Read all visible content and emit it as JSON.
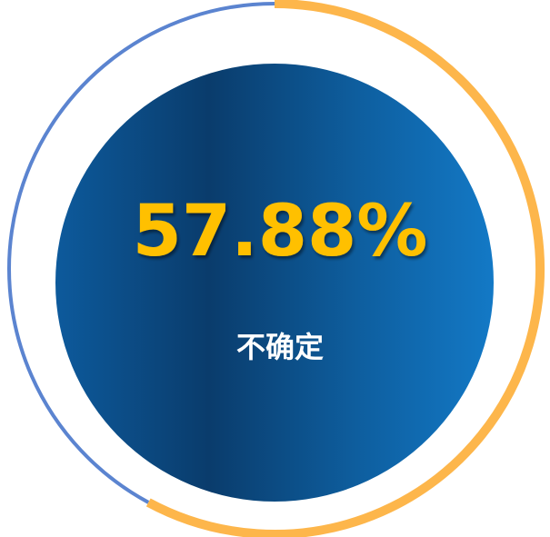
{
  "chart_data": {
    "type": "pie",
    "display_value": "57.88%",
    "value_percent": 57.88,
    "label": "不确定",
    "colors": {
      "value_arc": "#FDB64B",
      "remainder_arc": "#5B84D0",
      "value_text": "#FFC000",
      "label_text": "#FFFFFF",
      "disc_gradient_stops": [
        "#0D5A9C",
        "#0A3C6C",
        "#0E5FA0",
        "#1379C6"
      ]
    }
  }
}
